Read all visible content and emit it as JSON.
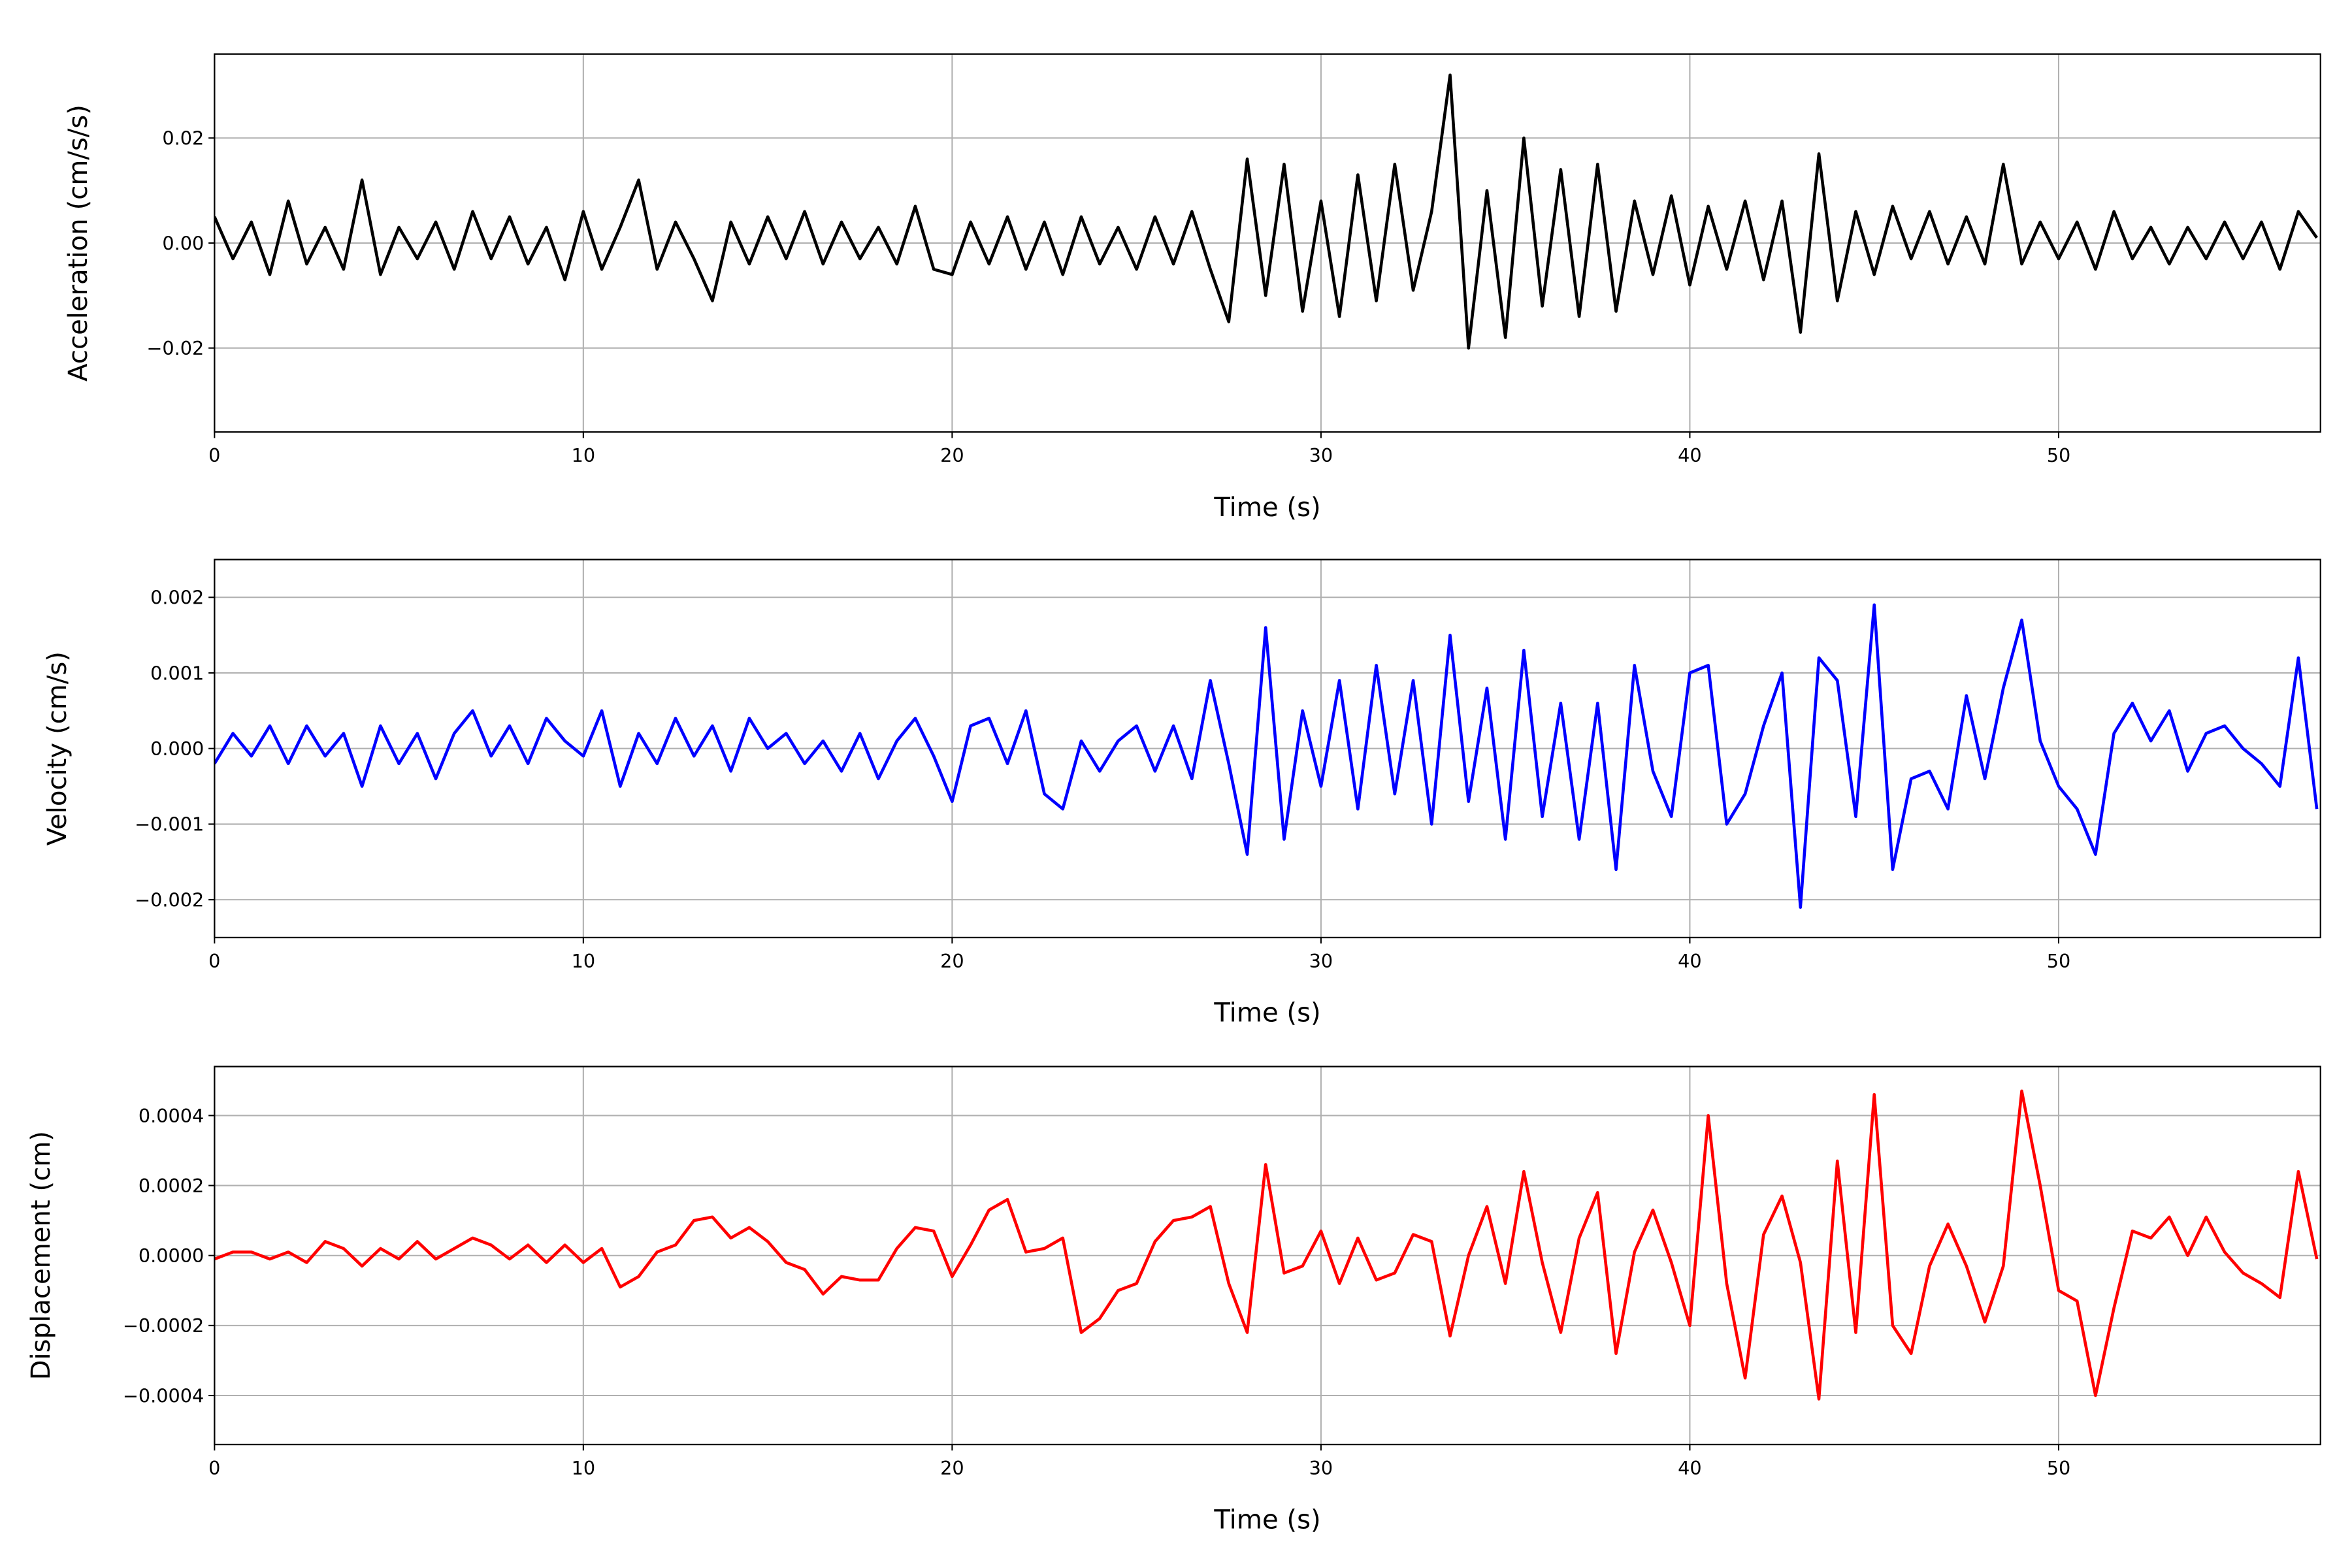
{
  "chart_data": [
    {
      "type": "line",
      "xlabel": "Time (s)",
      "ylabel": "Acceleration (cm/s/s)",
      "color": "#000000",
      "grid": true,
      "xlim": [
        0,
        57.1
      ],
      "ylim": [
        -0.036,
        0.036
      ],
      "xticks": [
        0,
        10,
        20,
        30,
        40,
        50
      ],
      "yticks": [
        {
          "value": -0.02,
          "label": "−0.02"
        },
        {
          "value": 0,
          "label": "0.00"
        },
        0.02
      ],
      "x": [
        0,
        0.5,
        1,
        1.5,
        2,
        2.5,
        3,
        3.5,
        4,
        4.5,
        5,
        5.5,
        6,
        6.5,
        7,
        7.5,
        8,
        8.5,
        9,
        9.5,
        10,
        10.5,
        11,
        11.5,
        12,
        12.5,
        13,
        13.5,
        14,
        14.5,
        15,
        15.5,
        16,
        16.5,
        17,
        17.5,
        18,
        18.5,
        19,
        19.5,
        20,
        20.5,
        21,
        21.5,
        22,
        22.5,
        23,
        23.5,
        24,
        24.5,
        25,
        25.5,
        26,
        26.5,
        27,
        27.5,
        28,
        28.5,
        29,
        29.5,
        30,
        30.5,
        31,
        31.5,
        32,
        32.5,
        33,
        33.5,
        34,
        34.5,
        35,
        35.5,
        36,
        36.5,
        37,
        37.5,
        38,
        38.5,
        39,
        39.5,
        40,
        40.5,
        41,
        41.5,
        42,
        42.5,
        43,
        43.5,
        44,
        44.5,
        45,
        45.5,
        46,
        46.5,
        47,
        47.5,
        48,
        48.5,
        49,
        49.5,
        50,
        50.5,
        51,
        51.5,
        52,
        52.5,
        53,
        53.5,
        54,
        54.5,
        55,
        55.5,
        56,
        56.5,
        57
      ],
      "values": [
        0.005,
        -0.003,
        0.004,
        -0.006,
        0.008,
        -0.004,
        0.003,
        -0.005,
        0.012,
        -0.006,
        0.003,
        -0.003,
        0.004,
        -0.005,
        0.006,
        -0.003,
        0.005,
        -0.004,
        0.003,
        -0.007,
        0.006,
        -0.005,
        0.003,
        0.012,
        -0.005,
        0.004,
        -0.003,
        -0.011,
        0.004,
        -0.004,
        0.005,
        -0.003,
        0.006,
        -0.004,
        0.004,
        -0.003,
        0.003,
        -0.004,
        0.007,
        -0.005,
        -0.006,
        0.004,
        -0.004,
        0.005,
        -0.005,
        0.004,
        -0.006,
        0.005,
        -0.004,
        0.003,
        -0.005,
        0.005,
        -0.004,
        0.006,
        -0.005,
        -0.015,
        0.016,
        -0.01,
        0.015,
        -0.013,
        0.008,
        -0.014,
        0.013,
        -0.011,
        0.015,
        -0.009,
        0.006,
        0.032,
        -0.02,
        0.01,
        -0.018,
        0.02,
        -0.012,
        0.014,
        -0.014,
        0.015,
        -0.013,
        0.008,
        -0.006,
        0.009,
        -0.008,
        0.007,
        -0.005,
        0.008,
        -0.007,
        0.008,
        -0.017,
        0.017,
        -0.011,
        0.006,
        -0.006,
        0.007,
        -0.003,
        0.006,
        -0.004,
        0.005,
        -0.004,
        0.015,
        -0.004,
        0.004,
        -0.003,
        0.004,
        -0.005,
        0.006,
        -0.003,
        0.003,
        -0.004,
        0.003,
        -0.003,
        0.004,
        -0.003,
        0.004,
        -0.005,
        0.006,
        0.001
      ]
    },
    {
      "type": "line",
      "xlabel": "Time (s)",
      "ylabel": "Velocity (cm/s)",
      "color": "#0000ff",
      "grid": true,
      "xlim": [
        0,
        57.1
      ],
      "ylim": [
        -0.0025,
        0.0025
      ],
      "xticks": [
        0,
        10,
        20,
        30,
        40,
        50
      ],
      "yticks": [
        {
          "value": -0.002,
          "label": "−0.002"
        },
        {
          "value": -0.001,
          "label": "−0.001"
        },
        {
          "value": 0,
          "label": "0.000"
        },
        0.001,
        0.002
      ],
      "x": [
        0,
        0.5,
        1,
        1.5,
        2,
        2.5,
        3,
        3.5,
        4,
        4.5,
        5,
        5.5,
        6,
        6.5,
        7,
        7.5,
        8,
        8.5,
        9,
        9.5,
        10,
        10.5,
        11,
        11.5,
        12,
        12.5,
        13,
        13.5,
        14,
        14.5,
        15,
        15.5,
        16,
        16.5,
        17,
        17.5,
        18,
        18.5,
        19,
        19.5,
        20,
        20.5,
        21,
        21.5,
        22,
        22.5,
        23,
        23.5,
        24,
        24.5,
        25,
        25.5,
        26,
        26.5,
        27,
        27.5,
        28,
        28.5,
        29,
        29.5,
        30,
        30.5,
        31,
        31.5,
        32,
        32.5,
        33,
        33.5,
        34,
        34.5,
        35,
        35.5,
        36,
        36.5,
        37,
        37.5,
        38,
        38.5,
        39,
        39.5,
        40,
        40.5,
        41,
        41.5,
        42,
        42.5,
        43,
        43.5,
        44,
        44.5,
        45,
        45.5,
        46,
        46.5,
        47,
        47.5,
        48,
        48.5,
        49,
        49.5,
        50,
        50.5,
        51,
        51.5,
        52,
        52.5,
        53,
        53.5,
        54,
        54.5,
        55,
        55.5,
        56,
        56.5,
        57
      ],
      "values": [
        -0.0002,
        0.0002,
        -0.0001,
        0.0003,
        -0.0002,
        0.0003,
        -0.0001,
        0.0002,
        -0.0005,
        0.0003,
        -0.0002,
        0.0002,
        -0.0004,
        0.0002,
        0.0005,
        -0.0001,
        0.0003,
        -0.0002,
        0.0004,
        0.0001,
        -0.0001,
        0.0005,
        -0.0005,
        0.0002,
        -0.0002,
        0.0004,
        -0.0001,
        0.0003,
        -0.0003,
        0.0004,
        0,
        0.0002,
        -0.0002,
        0.0001,
        -0.0003,
        0.0002,
        -0.0004,
        0.0001,
        0.0004,
        -0.0001,
        -0.0007,
        0.0003,
        0.0004,
        -0.0002,
        0.0005,
        -0.0006,
        -0.0008,
        0.0001,
        -0.0003,
        0.0001,
        0.0003,
        -0.0003,
        0.0003,
        -0.0004,
        0.0009,
        -0.0002,
        -0.0014,
        0.0016,
        -0.0012,
        0.0005,
        -0.0005,
        0.0009,
        -0.0008,
        0.0011,
        -0.0006,
        0.0009,
        -0.001,
        0.0015,
        -0.0007,
        0.0008,
        -0.0012,
        0.0013,
        -0.0009,
        0.0006,
        -0.0012,
        0.0006,
        -0.0016,
        0.0011,
        -0.0003,
        -0.0009,
        0.001,
        0.0011,
        -0.001,
        -0.0006,
        0.0003,
        0.001,
        -0.0021,
        0.0012,
        0.0009,
        -0.0009,
        0.0019,
        -0.0016,
        -0.0004,
        -0.0003,
        -0.0008,
        0.0007,
        -0.0004,
        0.0008,
        0.0017,
        0.0001,
        -0.0005,
        -0.0008,
        -0.0014,
        0.0002,
        0.0006,
        0.0001,
        0.0005,
        -0.0003,
        0.0002,
        0.0003,
        0,
        -0.0002,
        -0.0005,
        0.0012,
        -0.0008
      ]
    },
    {
      "type": "line",
      "xlabel": "Time (s)",
      "ylabel": "Displacement (cm)",
      "color": "#ff0000",
      "grid": true,
      "xlim": [
        0,
        57.1
      ],
      "ylim": [
        -0.00054,
        0.00054
      ],
      "xticks": [
        0,
        10,
        20,
        30,
        40,
        50
      ],
      "yticks": [
        {
          "value": -0.0004,
          "label": "−0.0004"
        },
        {
          "value": -0.0002,
          "label": "−0.0002"
        },
        {
          "value": 0,
          "label": "0.0000"
        },
        0.0002,
        0.0004
      ],
      "x": [
        0,
        0.5,
        1,
        1.5,
        2,
        2.5,
        3,
        3.5,
        4,
        4.5,
        5,
        5.5,
        6,
        6.5,
        7,
        7.5,
        8,
        8.5,
        9,
        9.5,
        10,
        10.5,
        11,
        11.5,
        12,
        12.5,
        13,
        13.5,
        14,
        14.5,
        15,
        15.5,
        16,
        16.5,
        17,
        17.5,
        18,
        18.5,
        19,
        19.5,
        20,
        20.5,
        21,
        21.5,
        22,
        22.5,
        23,
        23.5,
        24,
        24.5,
        25,
        25.5,
        26,
        26.5,
        27,
        27.5,
        28,
        28.5,
        29,
        29.5,
        30,
        30.5,
        31,
        31.5,
        32,
        32.5,
        33,
        33.5,
        34,
        34.5,
        35,
        35.5,
        36,
        36.5,
        37,
        37.5,
        38,
        38.5,
        39,
        39.5,
        40,
        40.5,
        41,
        41.5,
        42,
        42.5,
        43,
        43.5,
        44,
        44.5,
        45,
        45.5,
        46,
        46.5,
        47,
        47.5,
        48,
        48.5,
        49,
        49.5,
        50,
        50.5,
        51,
        51.5,
        52,
        52.5,
        53,
        53.5,
        54,
        54.5,
        55,
        55.5,
        56,
        56.5,
        57
      ],
      "values": [
        -1e-05,
        1e-05,
        1e-05,
        -1e-05,
        1e-05,
        -2e-05,
        4e-05,
        2e-05,
        -3e-05,
        2e-05,
        -1e-05,
        4e-05,
        -1e-05,
        2e-05,
        5e-05,
        3e-05,
        -1e-05,
        3e-05,
        -2e-05,
        3e-05,
        -2e-05,
        2e-05,
        -9e-05,
        -6e-05,
        1e-05,
        3e-05,
        0.0001,
        0.00011,
        5e-05,
        8e-05,
        4e-05,
        -2e-05,
        -4e-05,
        -0.00011,
        -6e-05,
        -7e-05,
        -7e-05,
        2e-05,
        8e-05,
        7e-05,
        -6e-05,
        3e-05,
        0.00013,
        0.00016,
        1e-05,
        2e-05,
        5e-05,
        -0.00022,
        -0.00018,
        -0.0001,
        -8e-05,
        4e-05,
        0.0001,
        0.00011,
        0.00014,
        -8e-05,
        -0.00022,
        0.00026,
        -5e-05,
        -3e-05,
        7e-05,
        -8e-05,
        5e-05,
        -7e-05,
        -5e-05,
        6e-05,
        4e-05,
        -0.00023,
        0,
        0.00014,
        -8e-05,
        0.00024,
        -2e-05,
        -0.00022,
        5e-05,
        0.00018,
        -0.00028,
        1e-05,
        0.00013,
        -2e-05,
        -0.0002,
        0.0004,
        -8e-05,
        -0.00035,
        6e-05,
        0.00017,
        -2e-05,
        -0.00041,
        0.00027,
        -0.00022,
        0.00046,
        -0.0002,
        -0.00028,
        -3e-05,
        9e-05,
        -3e-05,
        -0.00019,
        -3e-05,
        0.00047,
        0.0002,
        -0.0001,
        -0.00013,
        -0.0004,
        -0.00015,
        7e-05,
        5e-05,
        0.00011,
        0,
        0.00011,
        1e-05,
        -5e-05,
        -8e-05,
        -0.00012,
        0.00024,
        -1e-05
      ]
    }
  ]
}
